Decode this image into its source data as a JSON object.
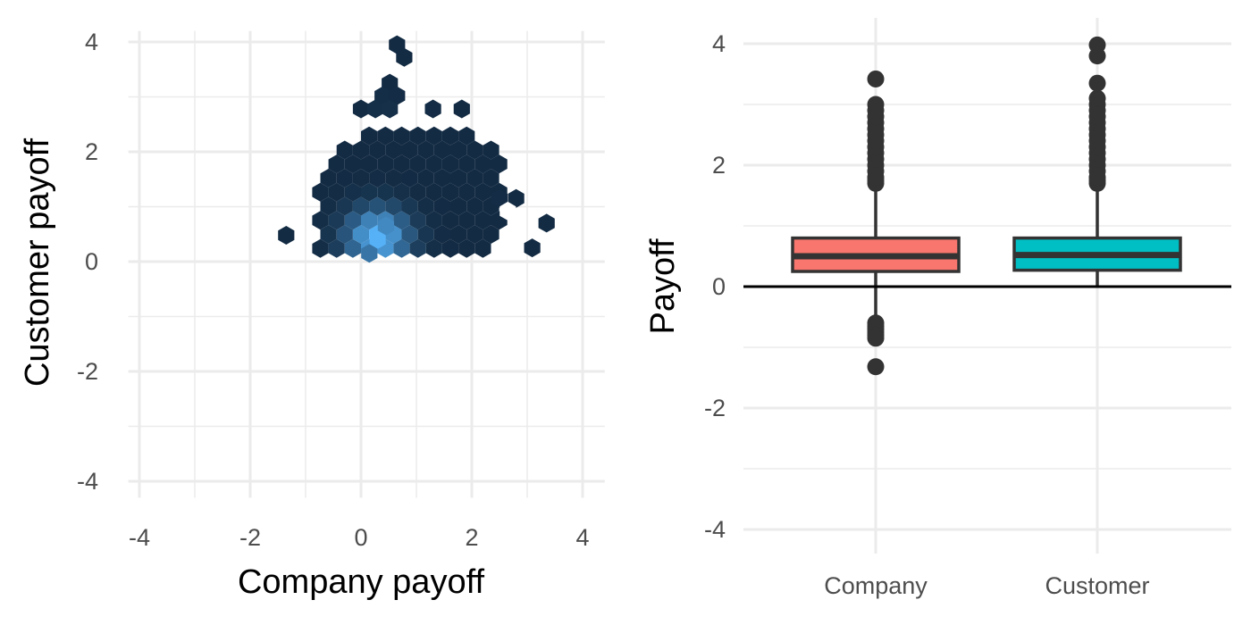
{
  "chart_data": [
    {
      "type": "hexbin",
      "title": "",
      "xlabel": "Company payoff",
      "ylabel": "Customer payoff",
      "xlim": [
        -4.2,
        4.4
      ],
      "ylim": [
        -4.3,
        4.2
      ],
      "xticks": [
        -4,
        -2,
        0,
        2,
        4
      ],
      "yticks": [
        -4,
        -2,
        0,
        2,
        4
      ],
      "xtick_labels": [
        "-4",
        "-2",
        "0",
        "2",
        "4"
      ],
      "ytick_labels": [
        "-4",
        "-2",
        "0",
        "2",
        "4"
      ],
      "grid": true,
      "colors": {
        "low": "#132b43",
        "high": "#56b1f7",
        "grid": "#ebebeb"
      },
      "hex_width": 0.26,
      "note_points_are_bin_centers_with_relative_density_0_to_1": true,
      "bins": [
        {
          "x": 0.65,
          "y": 3.95,
          "density": 0.0
        },
        {
          "x": 0.78,
          "y": 3.72,
          "density": 0.0
        },
        {
          "x": 0.52,
          "y": 3.25,
          "density": 0.0
        },
        {
          "x": 0.39,
          "y": 3.02,
          "density": 0.02
        },
        {
          "x": 0.65,
          "y": 3.02,
          "density": 0.01
        },
        {
          "x": -0.0,
          "y": 2.78,
          "density": 0.0
        },
        {
          "x": 0.26,
          "y": 2.78,
          "density": 0.03
        },
        {
          "x": 0.52,
          "y": 2.78,
          "density": 0.04
        },
        {
          "x": 1.3,
          "y": 2.78,
          "density": 0.01
        },
        {
          "x": 1.82,
          "y": 2.78,
          "density": 0.0
        },
        {
          "x": 3.35,
          "y": 0.7,
          "density": 0.0
        },
        {
          "x": 3.09,
          "y": 0.25,
          "density": 0.0
        },
        {
          "x": -1.35,
          "y": 0.48,
          "density": 0.0
        },
        {
          "x": 2.8,
          "y": 1.15,
          "density": 0.0
        },
        {
          "x": 2.5,
          "y": 1.15,
          "density": 0.01
        },
        {
          "x": 0.3,
          "y": 0.4,
          "density": 1.0
        },
        {
          "x": 0.45,
          "y": 0.65,
          "density": 0.7
        },
        {
          "x": 0.15,
          "y": 0.15,
          "density": 0.55
        }
      ]
    },
    {
      "type": "box",
      "title": "",
      "xlabel": "",
      "ylabel": "Payoff",
      "categories": [
        "Company",
        "Customer"
      ],
      "ylim": [
        -4.3,
        4.3
      ],
      "yticks": [
        -4,
        -2,
        0,
        2,
        4
      ],
      "ytick_labels": [
        "-4",
        "-2",
        "0",
        "2",
        "4"
      ],
      "grid": true,
      "reference_line_y": 0,
      "series": [
        {
          "category": "Company",
          "color": "#f8766d",
          "q1": 0.25,
          "median": 0.5,
          "q3": 0.8,
          "whisker_low": -0.55,
          "whisker_high": 1.65,
          "outliers": [
            1.7,
            1.75,
            1.8,
            1.9,
            2.0,
            2.1,
            2.2,
            2.3,
            2.4,
            2.5,
            2.6,
            2.7,
            2.8,
            2.9,
            3.0,
            3.42,
            -0.6,
            -0.65,
            -0.7,
            -0.75,
            -0.8,
            -0.85,
            -1.32
          ]
        },
        {
          "category": "Customer",
          "color": "#00bfc4",
          "q1": 0.27,
          "median": 0.52,
          "q3": 0.8,
          "whisker_low": 0.0,
          "whisker_high": 1.65,
          "outliers": [
            1.7,
            1.75,
            1.8,
            1.9,
            2.0,
            2.1,
            2.2,
            2.3,
            2.4,
            2.5,
            2.6,
            2.7,
            2.8,
            2.9,
            3.0,
            3.1,
            3.35,
            3.8,
            3.98
          ]
        }
      ],
      "colors": {
        "box_border": "#333333",
        "grid": "#ebebeb",
        "zero_line": "#000000",
        "outlier": "#333333"
      }
    }
  ]
}
